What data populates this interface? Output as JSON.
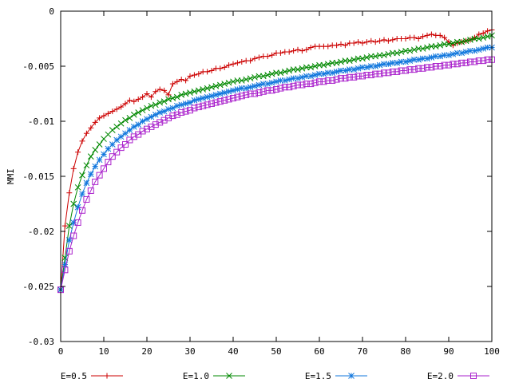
{
  "chart_data": {
    "type": "line",
    "title": "",
    "xlabel": "",
    "ylabel": "MMI",
    "xlim": [
      0,
      100
    ],
    "ylim": [
      -0.03,
      0
    ],
    "grid": false,
    "legend_position": "bottom",
    "x_ticks": [
      0,
      10,
      20,
      30,
      40,
      50,
      60,
      70,
      80,
      90,
      100
    ],
    "y_ticks": [
      -0.03,
      -0.025,
      -0.02,
      -0.015,
      -0.01,
      -0.005,
      0
    ],
    "x_tick_labels": [
      "0",
      "10",
      "20",
      "30",
      "40",
      "50",
      "60",
      "70",
      "80",
      "90",
      "100"
    ],
    "y_tick_labels": [
      "-0.03",
      "-0.025",
      "-0.02",
      "-0.015",
      "-0.01",
      "-0.005",
      "0"
    ],
    "x": [
      0,
      1,
      2,
      3,
      4,
      5,
      6,
      7,
      8,
      9,
      10,
      11,
      12,
      13,
      14,
      15,
      16,
      17,
      18,
      19,
      20,
      21,
      22,
      23,
      24,
      25,
      26,
      27,
      28,
      29,
      30,
      31,
      32,
      33,
      34,
      35,
      36,
      37,
      38,
      39,
      40,
      41,
      42,
      43,
      44,
      45,
      46,
      47,
      48,
      49,
      50,
      51,
      52,
      53,
      54,
      55,
      56,
      57,
      58,
      59,
      60,
      61,
      62,
      63,
      64,
      65,
      66,
      67,
      68,
      69,
      70,
      71,
      72,
      73,
      74,
      75,
      76,
      77,
      78,
      79,
      80,
      81,
      82,
      83,
      84,
      85,
      86,
      87,
      88,
      89,
      90,
      91,
      92,
      93,
      94,
      95,
      96,
      97,
      98,
      99,
      100
    ],
    "series": [
      {
        "name": "E=0.5",
        "color": "#cc0000",
        "marker": "plus",
        "values": [
          -0.0253,
          -0.0195,
          -0.0165,
          -0.0143,
          -0.0128,
          -0.0118,
          -0.0111,
          -0.0106,
          -0.0101,
          -0.0097,
          -0.0095,
          -0.0093,
          -0.0091,
          -0.0089,
          -0.0087,
          -0.0084,
          -0.0081,
          -0.0082,
          -0.008,
          -0.0078,
          -0.0075,
          -0.0078,
          -0.0073,
          -0.0071,
          -0.0072,
          -0.0076,
          -0.0066,
          -0.0064,
          -0.0062,
          -0.0063,
          -0.0059,
          -0.0058,
          -0.0057,
          -0.0055,
          -0.0055,
          -0.0054,
          -0.0052,
          -0.0052,
          -0.0051,
          -0.0049,
          -0.0048,
          -0.0047,
          -0.0046,
          -0.0045,
          -0.0045,
          -0.0043,
          -0.0042,
          -0.0041,
          -0.0041,
          -0.004,
          -0.0038,
          -0.0038,
          -0.0037,
          -0.0037,
          -0.0036,
          -0.0035,
          -0.0036,
          -0.0035,
          -0.0033,
          -0.0032,
          -0.0032,
          -0.0032,
          -0.0032,
          -0.0031,
          -0.0031,
          -0.003,
          -0.0031,
          -0.0029,
          -0.0029,
          -0.0028,
          -0.0029,
          -0.0028,
          -0.0027,
          -0.0028,
          -0.0027,
          -0.0026,
          -0.0027,
          -0.0026,
          -0.0025,
          -0.0025,
          -0.0025,
          -0.0024,
          -0.0024,
          -0.0025,
          -0.0023,
          -0.0022,
          -0.0021,
          -0.0022,
          -0.0022,
          -0.0024,
          -0.0028,
          -0.0031,
          -0.0029,
          -0.0028,
          -0.0027,
          -0.0026,
          -0.0024,
          -0.0021,
          -0.002,
          -0.0018,
          -0.0017
        ]
      },
      {
        "name": "E=1.0",
        "color": "#008800",
        "marker": "cross",
        "values": [
          -0.0253,
          -0.0224,
          -0.0195,
          -0.0175,
          -0.016,
          -0.0149,
          -0.014,
          -0.0132,
          -0.0126,
          -0.0121,
          -0.0116,
          -0.0112,
          -0.0108,
          -0.0105,
          -0.0102,
          -0.0099,
          -0.0097,
          -0.0094,
          -0.0092,
          -0.009,
          -0.0088,
          -0.0086,
          -0.0085,
          -0.0083,
          -0.0082,
          -0.008,
          -0.0079,
          -0.0078,
          -0.0076,
          -0.0075,
          -0.0074,
          -0.0073,
          -0.0072,
          -0.0071,
          -0.007,
          -0.0069,
          -0.0068,
          -0.0067,
          -0.0066,
          -0.0065,
          -0.0064,
          -0.0063,
          -0.0063,
          -0.0062,
          -0.0061,
          -0.006,
          -0.0059,
          -0.0059,
          -0.0058,
          -0.0057,
          -0.0056,
          -0.0056,
          -0.0055,
          -0.0054,
          -0.0053,
          -0.0053,
          -0.0052,
          -0.0051,
          -0.0051,
          -0.005,
          -0.0049,
          -0.0049,
          -0.0048,
          -0.0047,
          -0.0047,
          -0.0046,
          -0.0045,
          -0.0045,
          -0.0044,
          -0.0043,
          -0.0043,
          -0.0042,
          -0.0041,
          -0.0041,
          -0.004,
          -0.004,
          -0.0039,
          -0.0038,
          -0.0038,
          -0.0037,
          -0.0036,
          -0.0036,
          -0.0035,
          -0.0034,
          -0.0034,
          -0.0033,
          -0.0032,
          -0.0032,
          -0.0031,
          -0.003,
          -0.003,
          -0.0029,
          -0.0028,
          -0.0028,
          -0.0027,
          -0.0026,
          -0.0025,
          -0.0025,
          -0.0024,
          -0.0023,
          -0.0022
        ]
      },
      {
        "name": "E=1.5",
        "color": "#1177dd",
        "marker": "star",
        "values": [
          -0.0253,
          -0.023,
          -0.0208,
          -0.0192,
          -0.0178,
          -0.0166,
          -0.0156,
          -0.0148,
          -0.0141,
          -0.0135,
          -0.013,
          -0.0125,
          -0.0121,
          -0.0117,
          -0.0114,
          -0.0111,
          -0.0108,
          -0.0105,
          -0.0103,
          -0.01,
          -0.0098,
          -0.0096,
          -0.0094,
          -0.0092,
          -0.0091,
          -0.0089,
          -0.0088,
          -0.0086,
          -0.0085,
          -0.0084,
          -0.0083,
          -0.0081,
          -0.008,
          -0.0079,
          -0.0078,
          -0.0077,
          -0.0076,
          -0.0075,
          -0.0074,
          -0.0073,
          -0.0072,
          -0.0071,
          -0.007,
          -0.007,
          -0.0069,
          -0.0068,
          -0.0067,
          -0.0066,
          -0.0066,
          -0.0065,
          -0.0064,
          -0.0063,
          -0.0063,
          -0.0062,
          -0.0061,
          -0.0061,
          -0.006,
          -0.0059,
          -0.0059,
          -0.0058,
          -0.0057,
          -0.0057,
          -0.0056,
          -0.0056,
          -0.0055,
          -0.0054,
          -0.0054,
          -0.0053,
          -0.0053,
          -0.0052,
          -0.0051,
          -0.0051,
          -0.005,
          -0.005,
          -0.0049,
          -0.0048,
          -0.0048,
          -0.0047,
          -0.0047,
          -0.0046,
          -0.0046,
          -0.0045,
          -0.0044,
          -0.0044,
          -0.0043,
          -0.0043,
          -0.0042,
          -0.0041,
          -0.0041,
          -0.004,
          -0.004,
          -0.0039,
          -0.0038,
          -0.0038,
          -0.0037,
          -0.0036,
          -0.0036,
          -0.0035,
          -0.0034,
          -0.0033,
          -0.0033
        ]
      },
      {
        "name": "E=2.0",
        "color": "#aa22cc",
        "marker": "square",
        "values": [
          -0.0253,
          -0.0235,
          -0.0218,
          -0.0204,
          -0.0192,
          -0.0181,
          -0.0171,
          -0.0163,
          -0.0155,
          -0.0149,
          -0.0143,
          -0.0137,
          -0.0132,
          -0.0128,
          -0.0124,
          -0.0121,
          -0.0117,
          -0.0114,
          -0.0112,
          -0.0109,
          -0.0107,
          -0.0105,
          -0.0103,
          -0.0101,
          -0.0099,
          -0.0097,
          -0.0095,
          -0.0094,
          -0.0092,
          -0.0091,
          -0.009,
          -0.0088,
          -0.0087,
          -0.0086,
          -0.0085,
          -0.0084,
          -0.0083,
          -0.0082,
          -0.0081,
          -0.008,
          -0.0079,
          -0.0078,
          -0.0077,
          -0.0076,
          -0.0075,
          -0.0075,
          -0.0074,
          -0.0073,
          -0.0072,
          -0.0072,
          -0.0071,
          -0.007,
          -0.0069,
          -0.0069,
          -0.0068,
          -0.0067,
          -0.0067,
          -0.0066,
          -0.0066,
          -0.0065,
          -0.0064,
          -0.0064,
          -0.0063,
          -0.0063,
          -0.0062,
          -0.0061,
          -0.0061,
          -0.006,
          -0.006,
          -0.0059,
          -0.0059,
          -0.0058,
          -0.0058,
          -0.0057,
          -0.0057,
          -0.0056,
          -0.0056,
          -0.0055,
          -0.0055,
          -0.0054,
          -0.0054,
          -0.0053,
          -0.0053,
          -0.0052,
          -0.0052,
          -0.0051,
          -0.0051,
          -0.005,
          -0.005,
          -0.0049,
          -0.0049,
          -0.0048,
          -0.0048,
          -0.0047,
          -0.0047,
          -0.0046,
          -0.0046,
          -0.0045,
          -0.0045,
          -0.0044,
          -0.0044
        ]
      }
    ]
  }
}
